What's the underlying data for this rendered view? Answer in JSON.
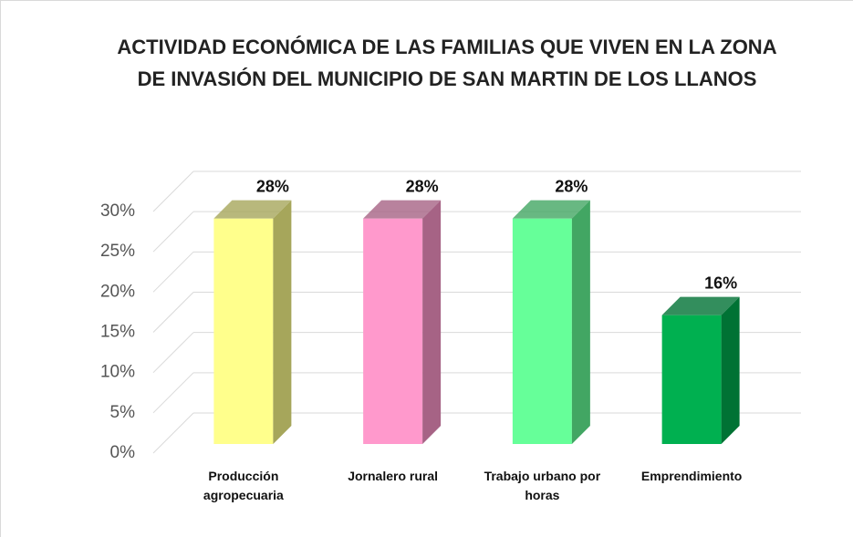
{
  "chart_data": {
    "type": "bar3d",
    "title": "ACTIVIDAD ECONÓMICA DE  LAS FAMILIAS QUE VIVEN EN LA ZONA DE INVASIÓN DEL MUNICIPIO DE SAN MARTIN DE LOS LLANOS",
    "categories": [
      "Producción agropecuaria",
      "Jornalero rural",
      "Trabajo urbano por horas",
      "Emprendimiento"
    ],
    "values": [
      28,
      28,
      28,
      16
    ],
    "value_labels": [
      "28%",
      "28%",
      "28%",
      "16%"
    ],
    "colors": [
      "#ffff8c",
      "#ff99cc",
      "#66ff99",
      "#00b050"
    ],
    "ylim": [
      0,
      30
    ],
    "yticks": [
      {
        "value": 0,
        "label": "0%"
      },
      {
        "value": 5,
        "label": "5%"
      },
      {
        "value": 10,
        "label": "10%"
      },
      {
        "value": 15,
        "label": "15%"
      },
      {
        "value": 20,
        "label": "20%"
      },
      {
        "value": 25,
        "label": "25%"
      },
      {
        "value": 30,
        "label": "30%"
      }
    ],
    "grid": true
  }
}
